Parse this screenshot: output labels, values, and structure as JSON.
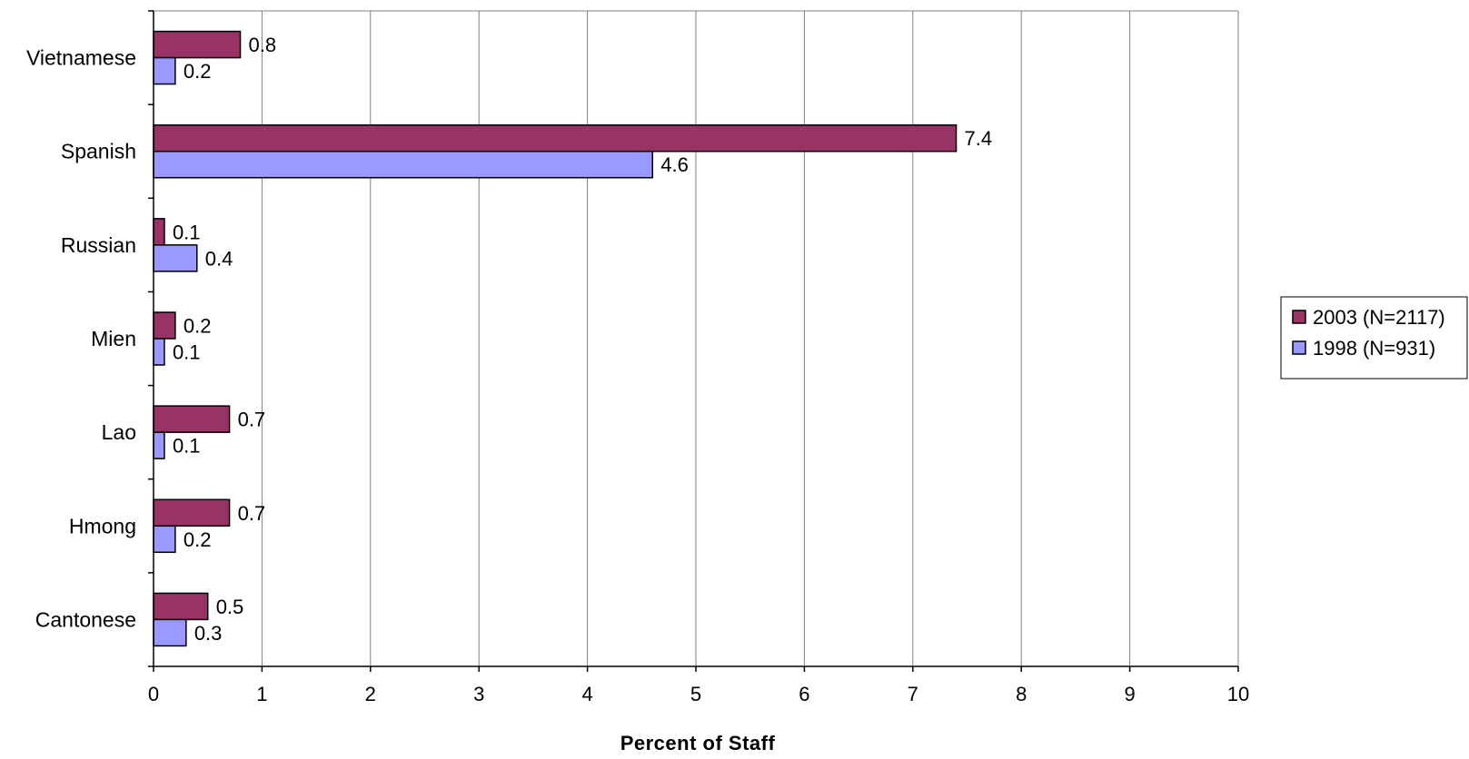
{
  "chart_data": {
    "type": "bar",
    "orientation": "horizontal",
    "categories": [
      "Vietnamese",
      "Spanish",
      "Russian",
      "Mien",
      "Lao",
      "Hmong",
      "Cantonese"
    ],
    "series": [
      {
        "name": "2003 (N=2117)",
        "color": "#993366",
        "values": [
          0.8,
          7.4,
          0.1,
          0.2,
          0.7,
          0.7,
          0.5
        ],
        "labels": [
          "0.8",
          "7.4",
          "0.1",
          "0.2",
          "0.7",
          "0.7",
          "0.5"
        ]
      },
      {
        "name": "1998 (N=931)",
        "color": "#9999FF",
        "values": [
          0.2,
          4.6,
          0.4,
          0.1,
          0.1,
          0.2,
          0.3
        ],
        "labels": [
          "0.2",
          "4.6",
          "0.4",
          "0.1",
          "0.1",
          "0.2",
          "0.3"
        ]
      }
    ],
    "xlabel": "Percent of Staff",
    "ylabel": "",
    "xlim": [
      0,
      10
    ],
    "xticks": [
      "0",
      "1",
      "2",
      "3",
      "4",
      "5",
      "6",
      "7",
      "8",
      "9",
      "10"
    ],
    "grid": "vertical",
    "legend": "right"
  }
}
